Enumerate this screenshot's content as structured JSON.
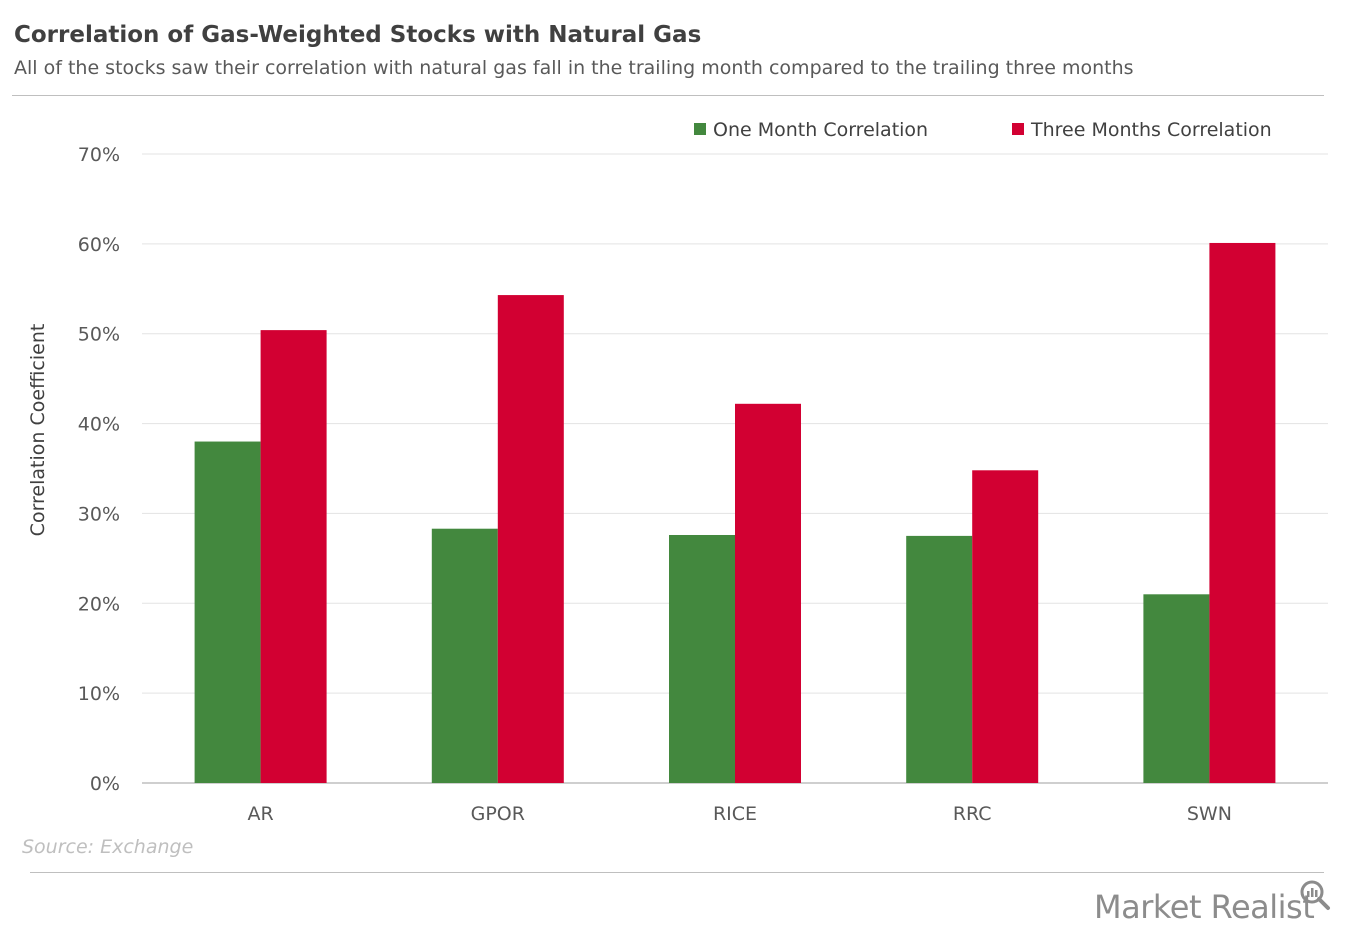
{
  "header": {
    "title": "Correlation of Gas-Weighted Stocks with Natural Gas",
    "subtitle": "All of the stocks saw their correlation with natural gas fall in the trailing month compared to the trailing three months"
  },
  "footer": {
    "source": "Source: Exchange",
    "brand": "Market Realist"
  },
  "chart_data": {
    "type": "bar",
    "title": "Correlation of Gas-Weighted Stocks with Natural Gas",
    "subtitle": "All of the stocks saw their correlation with natural gas fall in the trailing month compared to the trailing three months",
    "xlabel": "",
    "ylabel": "Correlation Coefficient",
    "categories": [
      "AR",
      "GPOR",
      "RICE",
      "RRC",
      "SWN"
    ],
    "series": [
      {
        "name": "One Month Correlation",
        "color": "#43883e",
        "values": [
          38.0,
          28.3,
          27.6,
          27.5,
          21.0
        ]
      },
      {
        "name": "Three Months Correlation",
        "color": "#d20032",
        "values": [
          50.4,
          54.3,
          42.2,
          34.8,
          60.1
        ]
      }
    ],
    "ylim": [
      0,
      70
    ],
    "yticks": [
      0,
      10,
      20,
      30,
      40,
      50,
      60,
      70
    ],
    "tick_suffix": "%",
    "grid": true,
    "legend": "top-right"
  }
}
